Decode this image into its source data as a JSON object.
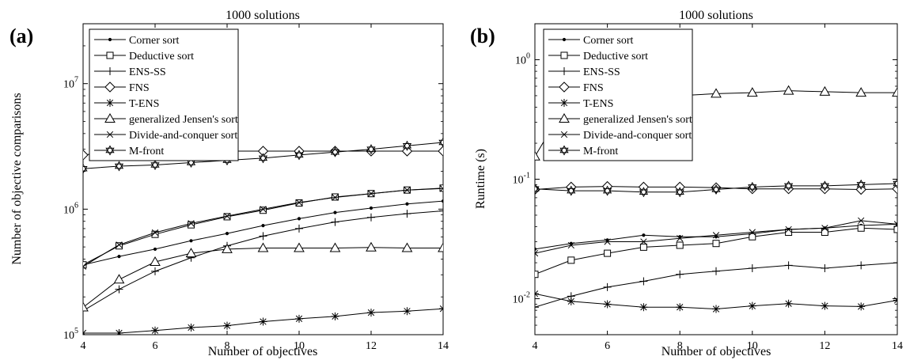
{
  "chart_data": [
    {
      "panel_label": "(a)",
      "type": "line",
      "title": "1000 solutions",
      "xlabel": "Number of objectives",
      "ylabel": "Number of objective comparisons",
      "yscale": "log",
      "xlim": [
        4,
        14
      ],
      "ylim": [
        100000,
        30000000
      ],
      "x_ticks": [
        "4",
        "6",
        "8",
        "10",
        "12",
        "14"
      ],
      "y_ticks": [
        {
          "base": "10",
          "exp": "5",
          "value": 100000
        },
        {
          "base": "10",
          "exp": "6",
          "value": 1000000
        },
        {
          "base": "10",
          "exp": "7",
          "value": 10000000
        }
      ],
      "legend_position": "top-left",
      "grid": false,
      "x": [
        4,
        5,
        6,
        7,
        8,
        9,
        10,
        11,
        12,
        13,
        14
      ],
      "series": [
        {
          "name": "Corner sort",
          "marker": "dot",
          "values": [
            360000,
            420000,
            480000,
            560000,
            640000,
            740000,
            840000,
            940000,
            1020000,
            1100000,
            1160000
          ]
        },
        {
          "name": "Deductive sort",
          "marker": "square",
          "values": [
            360000,
            510000,
            630000,
            750000,
            870000,
            980000,
            1120000,
            1250000,
            1330000,
            1420000,
            1470000
          ]
        },
        {
          "name": "ENS-SS",
          "marker": "plus",
          "values": [
            155000,
            230000,
            320000,
            410000,
            510000,
            610000,
            700000,
            790000,
            860000,
            920000,
            970000
          ]
        },
        {
          "name": "FNS",
          "marker": "diamond",
          "values": [
            2700000,
            2900000,
            2900000,
            2900000,
            2900000,
            2900000,
            2900000,
            2900000,
            2900000,
            2900000,
            2900000
          ]
        },
        {
          "name": "T-ENS",
          "marker": "asterisk",
          "values": [
            103000,
            103000,
            108000,
            114000,
            118000,
            127000,
            134000,
            140000,
            150000,
            154000,
            161000
          ]
        },
        {
          "name": "generalized Jensen's sort",
          "marker": "triangle",
          "values": [
            165000,
            275000,
            380000,
            445000,
            480000,
            490000,
            490000,
            490000,
            495000,
            490000,
            490000
          ]
        },
        {
          "name": "Divide-and-conquer sort",
          "marker": "x",
          "values": [
            350000,
            520000,
            650000,
            770000,
            880000,
            1000000,
            1130000,
            1240000,
            1330000,
            1420000,
            1460000
          ]
        },
        {
          "name": "M-front",
          "marker": "hexagram",
          "values": [
            2100000,
            2200000,
            2250000,
            2350000,
            2450000,
            2550000,
            2700000,
            2850000,
            3000000,
            3200000,
            3400000
          ]
        }
      ]
    },
    {
      "panel_label": "(b)",
      "type": "line",
      "title": "1000 solutions",
      "xlabel": "Number of objectives",
      "ylabel": "Runtime (s)",
      "yscale": "log",
      "xlim": [
        4,
        14
      ],
      "ylim": [
        0.005,
        2
      ],
      "x_ticks": [
        "4",
        "6",
        "8",
        "10",
        "12",
        "14"
      ],
      "y_ticks": [
        {
          "base": "10",
          "exp": "-2",
          "value": 0.01
        },
        {
          "base": "10",
          "exp": "-1",
          "value": 0.1
        },
        {
          "base": "10",
          "exp": "0",
          "value": 1
        }
      ],
      "legend_position": "top-left",
      "grid": false,
      "x": [
        4,
        5,
        6,
        7,
        8,
        9,
        10,
        11,
        12,
        13,
        14
      ],
      "series": [
        {
          "name": "Corner sort",
          "marker": "dot",
          "values": [
            0.026,
            0.029,
            0.031,
            0.034,
            0.033,
            0.033,
            0.035,
            0.038,
            0.039,
            0.041,
            0.042
          ]
        },
        {
          "name": "Deductive sort",
          "marker": "square",
          "values": [
            0.016,
            0.021,
            0.024,
            0.027,
            0.028,
            0.029,
            0.033,
            0.036,
            0.036,
            0.039,
            0.038
          ]
        },
        {
          "name": "ENS-SS",
          "marker": "plus",
          "values": [
            0.0085,
            0.0105,
            0.0125,
            0.014,
            0.016,
            0.017,
            0.018,
            0.019,
            0.018,
            0.019,
            0.02
          ]
        },
        {
          "name": "FNS",
          "marker": "diamond",
          "values": [
            0.082,
            0.086,
            0.087,
            0.086,
            0.086,
            0.085,
            0.083,
            0.083,
            0.083,
            0.082,
            0.083
          ]
        },
        {
          "name": "T-ENS",
          "marker": "asterisk",
          "values": [
            0.011,
            0.0095,
            0.009,
            0.0085,
            0.0085,
            0.0082,
            0.0087,
            0.0091,
            0.0087,
            0.0086,
            0.0097
          ]
        },
        {
          "name": "generalized Jensen's sort",
          "marker": "triangle",
          "values": [
            0.155,
            0.5,
            0.5,
            0.5,
            0.5,
            0.52,
            0.53,
            0.55,
            0.54,
            0.53,
            0.53
          ]
        },
        {
          "name": "Divide-and-conquer sort",
          "marker": "x",
          "values": [
            0.024,
            0.028,
            0.03,
            0.03,
            0.032,
            0.034,
            0.036,
            0.038,
            0.039,
            0.045,
            0.042
          ]
        },
        {
          "name": "M-front",
          "marker": "hexagram",
          "values": [
            0.083,
            0.08,
            0.08,
            0.078,
            0.078,
            0.082,
            0.086,
            0.088,
            0.088,
            0.09,
            0.092
          ]
        }
      ]
    }
  ]
}
